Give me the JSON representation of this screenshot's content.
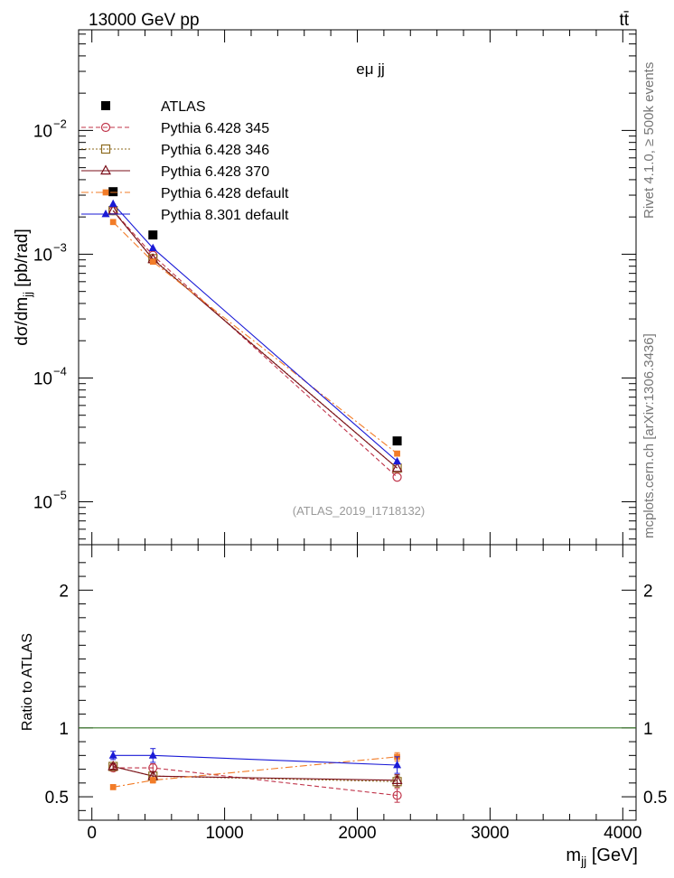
{
  "header": {
    "left": "13000 GeV pp",
    "right": "tt̄"
  },
  "side_labels": {
    "rivet": "Rivet 4.1.0, ≥ 500k events",
    "mcplots": "mcplots.cern.ch [arXiv:1306.3436]"
  },
  "chart_data": [
    {
      "id": "main",
      "type": "line",
      "title": "eμ jj",
      "analysis_label": "(ATLAS_2019_I1718132)",
      "ylabel": "dσ/dm_jj [pb/rad]",
      "xlabel": "m_jj [GeV]",
      "yscale": "log",
      "xlim": [
        -100,
        4100
      ],
      "ylim": [
        4.5e-06,
        0.065
      ],
      "x_ticks": [
        0,
        1000,
        2000,
        3000,
        4000
      ],
      "x_tick_labels": [
        "0",
        "1000",
        "2000",
        "3000",
        "4000"
      ],
      "y_tick_labels": [
        {
          "base": "10",
          "exp": "−5",
          "value": 1e-05
        },
        {
          "base": "10",
          "exp": "−4",
          "value": 0.0001
        },
        {
          "base": "10",
          "exp": "−3",
          "value": 0.001
        },
        {
          "base": "10",
          "exp": "−2",
          "value": 0.01
        }
      ],
      "x": [
        160,
        460,
        2300
      ],
      "series": [
        {
          "name": "ATLAS",
          "key": "atlas",
          "values": [
            0.0032,
            0.00143,
            3.1e-05
          ]
        },
        {
          "name": "Pythia 6.428 345",
          "key": "p345",
          "values": [
            0.00225,
            0.00098,
            1.58e-05
          ]
        },
        {
          "name": "Pythia 6.428 346",
          "key": "p346",
          "values": [
            0.00225,
            0.00092,
            1.87e-05
          ]
        },
        {
          "name": "Pythia 6.428 370",
          "key": "p370",
          "values": [
            0.00225,
            0.00091,
            1.87e-05
          ]
        },
        {
          "name": "Pythia 6.428 default",
          "key": "pdef",
          "values": [
            0.00182,
            0.00087,
            2.45e-05
          ]
        },
        {
          "name": "Pythia 8.301 default",
          "key": "p8",
          "values": [
            0.00255,
            0.00112,
            2.12e-05
          ]
        }
      ]
    },
    {
      "id": "ratio",
      "type": "line",
      "ylabel": "Ratio to ATLAS",
      "ylim": [
        0.33,
        2.33
      ],
      "y_ticks": [
        0.5,
        1,
        2
      ],
      "y_tick_labels": [
        "0.5",
        "1",
        "2"
      ],
      "reference_line": 1,
      "x": [
        160,
        460,
        2300
      ],
      "series": [
        {
          "name": "Pythia 6.428 345",
          "key": "p345",
          "values": [
            0.71,
            0.71,
            0.51
          ],
          "errors": [
            0.02,
            0.03,
            0.05
          ]
        },
        {
          "name": "Pythia 6.428 346",
          "key": "p346",
          "values": [
            0.72,
            0.65,
            0.61
          ],
          "errors": [
            0.02,
            0.03,
            0.04
          ]
        },
        {
          "name": "Pythia 6.428 370",
          "key": "p370",
          "values": [
            0.72,
            0.65,
            0.62
          ],
          "errors": [
            0.02,
            0.03,
            0.04
          ]
        },
        {
          "name": "Pythia 6.428 default",
          "key": "pdef",
          "values": [
            0.57,
            0.62,
            0.79
          ],
          "errors": [
            0.01,
            0.02,
            0.03
          ]
        },
        {
          "name": "Pythia 8.301 default",
          "key": "p8",
          "values": [
            0.8,
            0.8,
            0.73
          ],
          "errors": [
            0.03,
            0.05,
            0.06
          ]
        }
      ]
    }
  ],
  "styles": {
    "atlas": {
      "color": "#000000",
      "marker": "filled-square",
      "line": "none"
    },
    "p345": {
      "color": "#c0344a",
      "marker": "open-circle",
      "line": "dashed"
    },
    "p346": {
      "color": "#8c6a1e",
      "marker": "open-square",
      "line": "dotted"
    },
    "p370": {
      "color": "#7a0f1a",
      "marker": "open-triangle",
      "line": "solid"
    },
    "pdef": {
      "color": "#f27c28",
      "marker": "filled-square-small",
      "line": "dashdot"
    },
    "p8": {
      "color": "#1a1ad6",
      "marker": "filled-triangle",
      "line": "solid"
    },
    "reference": "#3a7a2a"
  }
}
